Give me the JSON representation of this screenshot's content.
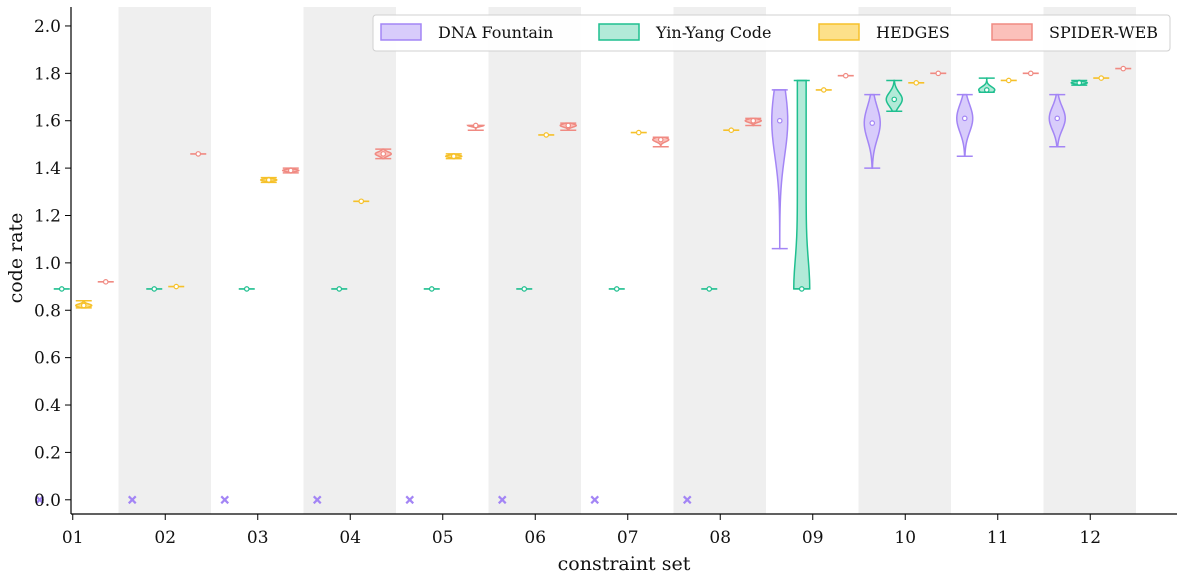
{
  "chart_data": {
    "type": "violin",
    "xlabel": "constraint set",
    "ylabel": "code rate",
    "ylim": [
      -0.06,
      2.08
    ],
    "yticks": [
      "0.0",
      "0.2",
      "0.4",
      "0.6",
      "0.8",
      "1.0",
      "1.2",
      "1.4",
      "1.6",
      "1.8",
      "2.0"
    ],
    "categories": [
      "01",
      "02",
      "03",
      "04",
      "05",
      "06",
      "07",
      "08",
      "09",
      "10",
      "11",
      "12"
    ],
    "shaded_bands": [
      false,
      true,
      false,
      true,
      false,
      true,
      false,
      true,
      false,
      true,
      false,
      true
    ],
    "legend_position": "top-right",
    "series": [
      {
        "name": "DNA Fountain",
        "color": "#a385f5",
        "fill": "#d8ccfb",
        "marker_for_zero": "x",
        "values": [
          {
            "median": 0.0,
            "min": 0.0,
            "max": 0.0,
            "failed": true
          },
          {
            "median": 0.0,
            "min": 0.0,
            "max": 0.0,
            "failed": true
          },
          {
            "median": 0.0,
            "min": 0.0,
            "max": 0.0,
            "failed": true
          },
          {
            "median": 0.0,
            "min": 0.0,
            "max": 0.0,
            "failed": true
          },
          {
            "median": 0.0,
            "min": 0.0,
            "max": 0.0,
            "failed": true
          },
          {
            "median": 0.0,
            "min": 0.0,
            "max": 0.0,
            "failed": true
          },
          {
            "median": 0.0,
            "min": 0.0,
            "max": 0.0,
            "failed": true
          },
          {
            "median": 0.0,
            "min": 0.0,
            "max": 0.0,
            "failed": true
          },
          {
            "median": 1.6,
            "min": 1.06,
            "max": 1.73
          },
          {
            "median": 1.59,
            "min": 1.4,
            "max": 1.71
          },
          {
            "median": 1.61,
            "min": 1.45,
            "max": 1.71
          },
          {
            "median": 1.61,
            "min": 1.49,
            "max": 1.71
          }
        ]
      },
      {
        "name": "Yin-Yang Code",
        "color": "#1fbf8f",
        "fill": "#b2ead8",
        "values": [
          {
            "median": 0.89,
            "min": 0.89,
            "max": 0.89
          },
          {
            "median": 0.89,
            "min": 0.89,
            "max": 0.89
          },
          {
            "median": 0.89,
            "min": 0.89,
            "max": 0.89
          },
          {
            "median": 0.89,
            "min": 0.89,
            "max": 0.89
          },
          {
            "median": 0.89,
            "min": 0.89,
            "max": 0.89
          },
          {
            "median": 0.89,
            "min": 0.89,
            "max": 0.89
          },
          {
            "median": 0.89,
            "min": 0.89,
            "max": 0.89
          },
          {
            "median": 0.89,
            "min": 0.89,
            "max": 0.89
          },
          {
            "median": 0.89,
            "min": 0.89,
            "max": 1.77
          },
          {
            "median": 1.69,
            "min": 1.64,
            "max": 1.77
          },
          {
            "median": 1.73,
            "min": 1.72,
            "max": 1.78
          },
          {
            "median": 1.76,
            "min": 1.75,
            "max": 1.77
          }
        ]
      },
      {
        "name": "HEDGES",
        "color": "#f6c12a",
        "fill": "#fde08a",
        "values": [
          {
            "median": 0.82,
            "min": 0.81,
            "max": 0.84
          },
          {
            "median": 0.9,
            "min": 0.9,
            "max": 0.9
          },
          {
            "median": 1.35,
            "min": 1.34,
            "max": 1.36
          },
          {
            "median": 1.26,
            "min": 1.26,
            "max": 1.26
          },
          {
            "median": 1.45,
            "min": 1.44,
            "max": 1.46
          },
          {
            "median": 1.54,
            "min": 1.54,
            "max": 1.54
          },
          {
            "median": 1.55,
            "min": 1.55,
            "max": 1.55
          },
          {
            "median": 1.56,
            "min": 1.56,
            "max": 1.56
          },
          {
            "median": 1.73,
            "min": 1.73,
            "max": 1.73
          },
          {
            "median": 1.76,
            "min": 1.76,
            "max": 1.76
          },
          {
            "median": 1.77,
            "min": 1.77,
            "max": 1.77
          },
          {
            "median": 1.78,
            "min": 1.78,
            "max": 1.78
          }
        ]
      },
      {
        "name": "SPIDER-WEB",
        "color": "#f08a82",
        "fill": "#fbc0ba",
        "values": [
          {
            "median": 0.92,
            "min": 0.92,
            "max": 0.92
          },
          {
            "median": 1.46,
            "min": 1.46,
            "max": 1.46
          },
          {
            "median": 1.39,
            "min": 1.38,
            "max": 1.4
          },
          {
            "median": 1.46,
            "min": 1.44,
            "max": 1.48
          },
          {
            "median": 1.58,
            "min": 1.56,
            "max": 1.58
          },
          {
            "median": 1.58,
            "min": 1.56,
            "max": 1.59
          },
          {
            "median": 1.52,
            "min": 1.49,
            "max": 1.53
          },
          {
            "median": 1.6,
            "min": 1.58,
            "max": 1.61
          },
          {
            "median": 1.79,
            "min": 1.79,
            "max": 1.79
          },
          {
            "median": 1.8,
            "min": 1.8,
            "max": 1.8
          },
          {
            "median": 1.8,
            "min": 1.8,
            "max": 1.8
          },
          {
            "median": 1.82,
            "min": 1.82,
            "max": 1.82
          }
        ]
      }
    ]
  }
}
